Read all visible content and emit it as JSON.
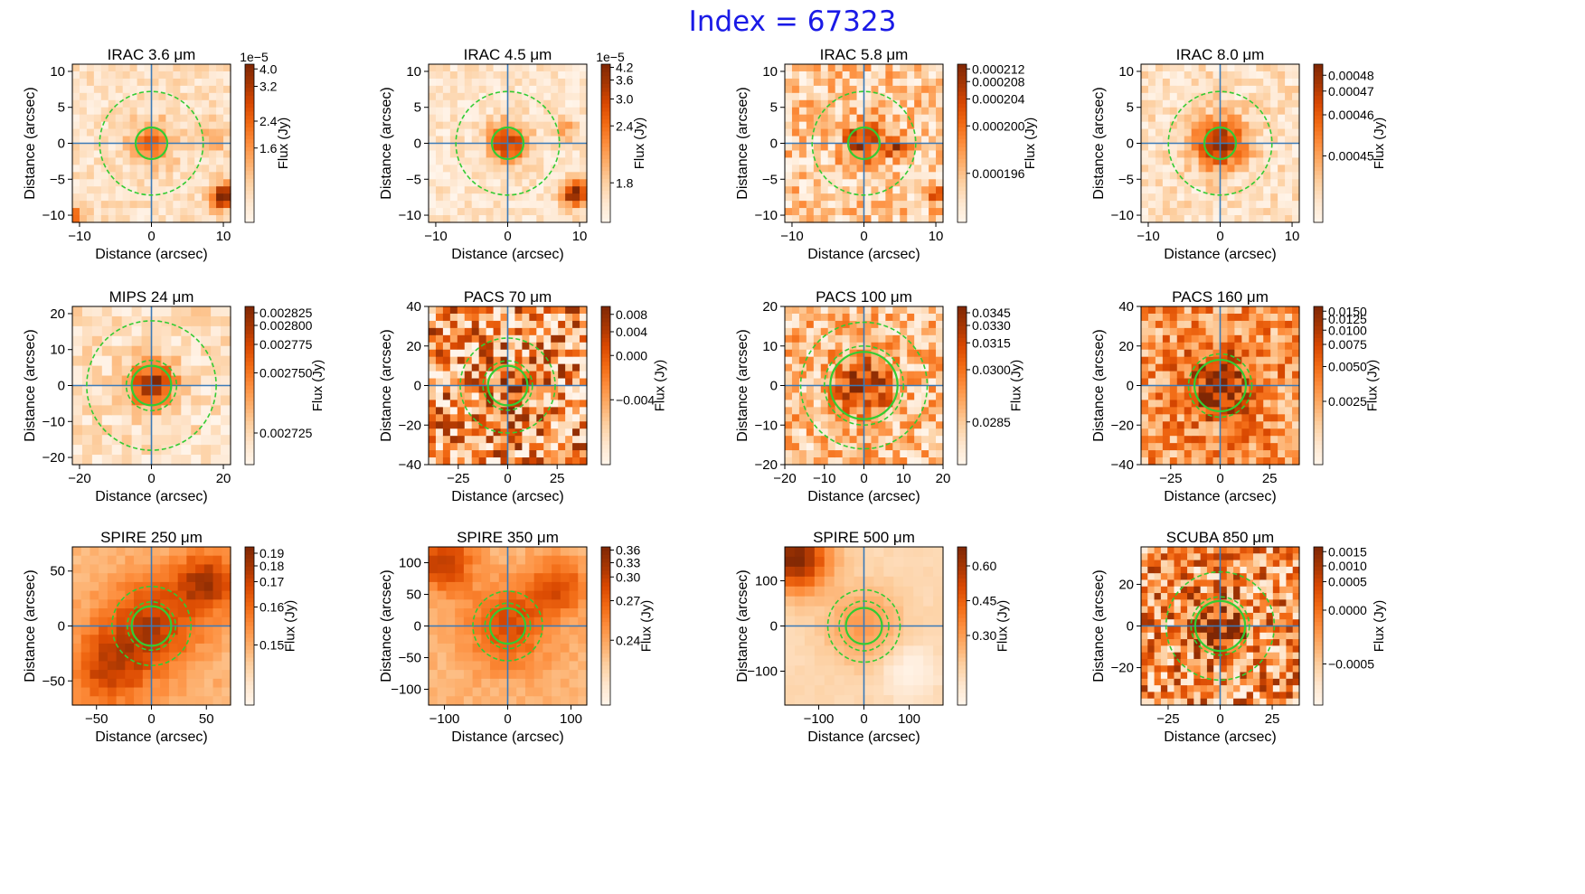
{
  "figure": {
    "title": "Index = 67323",
    "colors": {
      "title": "#1a1ae6",
      "crosshair": "#3a7ab8",
      "aperture": "#33cc33",
      "colormap": "Oranges"
    }
  },
  "chart_data": [
    {
      "type": "heatmap",
      "title": "IRAC 3.6 μm",
      "xlabel": "Distance (arcsec)",
      "ylabel": "Distance (arcsec)",
      "xlim": [
        -11,
        11
      ],
      "ylim": [
        -11,
        11
      ],
      "xticks": [
        -10,
        0,
        10
      ],
      "yticks": [
        -10,
        -5,
        0,
        5,
        10
      ],
      "colorbar": {
        "label": "Flux (Jy)",
        "offset": "1e−5",
        "ticks": [
          "4.0",
          "3.2",
          "2.4",
          "1.6"
        ],
        "tick_positions": [
          0.97,
          0.86,
          0.64,
          0.47
        ]
      },
      "apertures": {
        "inner": 2.2,
        "outer": [
          7.2
        ]
      },
      "peak": {
        "x": 0,
        "y": 0,
        "sigma": 2.0,
        "amp": 0.55
      },
      "extra_sources": [
        {
          "x": 10,
          "y": -7.5,
          "sigma": 1.2,
          "amp": 0.9
        },
        {
          "x": -10.5,
          "y": -10,
          "sigma": 0.8,
          "amp": 0.6
        },
        {
          "x": 9,
          "y": 1,
          "sigma": 1.2,
          "amp": 0.3
        }
      ],
      "noise": 0.25,
      "base": 0.15,
      "grid": 22
    },
    {
      "type": "heatmap",
      "title": "IRAC 4.5 μm",
      "xlabel": "Distance (arcsec)",
      "ylabel": "Distance (arcsec)",
      "xlim": [
        -11,
        11
      ],
      "ylim": [
        -11,
        11
      ],
      "xticks": [
        -10,
        0,
        10
      ],
      "yticks": [
        -10,
        -5,
        0,
        5,
        10
      ],
      "colorbar": {
        "label": "Flux (Jy)",
        "offset": "1e−5",
        "ticks": [
          "4.2",
          "3.6",
          "3.0",
          "2.4",
          "1.8"
        ],
        "tick_positions": [
          0.98,
          0.9,
          0.78,
          0.61,
          0.25
        ]
      },
      "apertures": {
        "inner": 2.2,
        "outer": [
          7.2
        ]
      },
      "peak": {
        "x": 0,
        "y": 0,
        "sigma": 2.0,
        "amp": 0.7
      },
      "extra_sources": [
        {
          "x": 9.5,
          "y": -7,
          "sigma": 1.3,
          "amp": 0.95
        },
        {
          "x": 8,
          "y": 2,
          "sigma": 1.2,
          "amp": 0.3
        }
      ],
      "noise": 0.25,
      "base": 0.12,
      "grid": 22
    },
    {
      "type": "heatmap",
      "title": "IRAC 5.8 μm",
      "xlabel": "Distance (arcsec)",
      "ylabel": "Distance (arcsec)",
      "xlim": [
        -11,
        11
      ],
      "ylim": [
        -11,
        11
      ],
      "xticks": [
        -10,
        0,
        10
      ],
      "yticks": [
        -10,
        -5,
        0,
        5,
        10
      ],
      "colorbar": {
        "label": "Flux (Jy)",
        "ticks": [
          "0.000212",
          "0.000208",
          "0.000204",
          "0.000200",
          "0.000196"
        ],
        "tick_positions": [
          0.97,
          0.89,
          0.78,
          0.61,
          0.31
        ]
      },
      "apertures": {
        "inner": 2.2,
        "outer": [
          7.2
        ]
      },
      "peak": {
        "x": 0,
        "y": 0,
        "sigma": 2.0,
        "amp": 0.6
      },
      "extra_sources": [
        {
          "x": 4.5,
          "y": -0.5,
          "sigma": 1.0,
          "amp": 0.6
        },
        {
          "x": 10,
          "y": -7,
          "sigma": 1.0,
          "amp": 0.6
        }
      ],
      "noise": 0.55,
      "base": 0.25,
      "grid": 22
    },
    {
      "type": "heatmap",
      "title": "IRAC 8.0 μm",
      "xlabel": "Distance (arcsec)",
      "ylabel": "Distance (arcsec)",
      "xlim": [
        -11,
        11
      ],
      "ylim": [
        -11,
        11
      ],
      "xticks": [
        -10,
        0,
        10
      ],
      "yticks": [
        -10,
        -5,
        0,
        5,
        10
      ],
      "colorbar": {
        "label": "Flux (Jy)",
        "ticks": [
          "0.00048",
          "0.00047",
          "0.00046",
          "0.00045"
        ],
        "tick_positions": [
          0.93,
          0.83,
          0.68,
          0.42
        ]
      },
      "apertures": {
        "inner": 2.2,
        "outer": [
          7.2
        ]
      },
      "peak": {
        "x": 0,
        "y": 0,
        "sigma": 2.5,
        "amp": 0.8
      },
      "extra_sources": [],
      "noise": 0.3,
      "base": 0.15,
      "grid": 22
    },
    {
      "type": "heatmap",
      "title": "MIPS 24 μm",
      "xlabel": "Distance (arcsec)",
      "ylabel": "Distance (arcsec)",
      "xlim": [
        -22,
        22
      ],
      "ylim": [
        -22,
        22
      ],
      "xticks": [
        -20,
        0,
        20
      ],
      "yticks": [
        -20,
        -10,
        0,
        10,
        20
      ],
      "colorbar": {
        "label": "Flux (Jy)",
        "ticks": [
          "0.002825",
          "0.002800",
          "0.002775",
          "0.002750",
          "0.002725"
        ],
        "tick_positions": [
          0.96,
          0.88,
          0.76,
          0.58,
          0.2
        ]
      },
      "apertures": {
        "inner": 5.5,
        "outer": [
          7.0,
          18.0
        ]
      },
      "peak": {
        "x": 0,
        "y": 0,
        "sigma": 4.5,
        "amp": 0.85
      },
      "extra_sources": [],
      "noise": 0.3,
      "base": 0.15,
      "grid": 16
    },
    {
      "type": "heatmap",
      "title": "PACS 70 μm",
      "xlabel": "Distance (arcsec)",
      "ylabel": "Distance (arcsec)",
      "xlim": [
        -40,
        40
      ],
      "ylim": [
        -40,
        40
      ],
      "xticks": [
        -25,
        0,
        25
      ],
      "yticks": [
        -40,
        -20,
        0,
        20,
        40
      ],
      "colorbar": {
        "label": "Flux (Jy)",
        "ticks": [
          "0.008",
          "0.004",
          "0.000",
          "−0.004"
        ],
        "tick_positions": [
          0.95,
          0.84,
          0.69,
          0.41
        ]
      },
      "apertures": {
        "inner": 10,
        "outer": [
          12.5,
          24
        ]
      },
      "peak": {
        "x": 0,
        "y": 0,
        "sigma": 7,
        "amp": 0.3
      },
      "extra_sources": [],
      "noise": 1.0,
      "base": 0.45,
      "grid": 22
    },
    {
      "type": "heatmap",
      "title": "PACS 100 μm",
      "xlabel": "Distance (arcsec)",
      "ylabel": "Distance (arcsec)",
      "xlim": [
        -20,
        20
      ],
      "ylim": [
        -20,
        20
      ],
      "xticks": [
        -20,
        -10,
        0,
        10,
        20
      ],
      "yticks": [
        -20,
        -10,
        0,
        10,
        20
      ],
      "colorbar": {
        "label": "Flux (Jy)",
        "ticks": [
          "0.0345",
          "0.0330",
          "0.0315",
          "0.0300",
          "0.0285"
        ],
        "tick_positions": [
          0.96,
          0.88,
          0.77,
          0.6,
          0.27
        ]
      },
      "apertures": {
        "inner": 8.5,
        "outer": [
          10,
          16
        ]
      },
      "peak": {
        "x": 0,
        "y": 0,
        "sigma": 5,
        "amp": 0.55
      },
      "extra_sources": [],
      "noise": 0.6,
      "base": 0.3,
      "grid": 22
    },
    {
      "type": "heatmap",
      "title": "PACS 160 μm",
      "xlabel": "Distance (arcsec)",
      "ylabel": "Distance (arcsec)",
      "xlim": [
        -40,
        40
      ],
      "ylim": [
        -40,
        40
      ],
      "xticks": [
        -25,
        0,
        25
      ],
      "yticks": [
        -40,
        -20,
        0,
        20,
        40
      ],
      "colorbar": {
        "label": "Flux (Jy)",
        "ticks": [
          "0.0150",
          "0.0125",
          "0.0100",
          "0.0075",
          "0.0050",
          "0.0025"
        ],
        "tick_positions": [
          0.97,
          0.92,
          0.85,
          0.76,
          0.62,
          0.4
        ]
      },
      "apertures": {
        "inner": 13,
        "outer": [
          16
        ]
      },
      "peak": {
        "x": 0,
        "y": 0,
        "sigma": 12,
        "amp": 0.5
      },
      "extra_sources": [],
      "noise": 0.6,
      "base": 0.45,
      "grid": 22
    },
    {
      "type": "heatmap",
      "title": "SPIRE 250 μm",
      "xlabel": "Distance (arcsec)",
      "ylabel": "Distance (arcsec)",
      "xlim": [
        -72,
        72
      ],
      "ylim": [
        -72,
        72
      ],
      "xticks": [
        -50,
        0,
        50
      ],
      "yticks": [
        -50,
        0,
        50
      ],
      "colorbar": {
        "label": "Flux (Jy)",
        "ticks": [
          "0.19",
          "0.18",
          "0.17",
          "0.16",
          "0.15"
        ],
        "tick_positions": [
          0.96,
          0.88,
          0.78,
          0.62,
          0.38
        ]
      },
      "apertures": {
        "inner": 18,
        "outer": [
          22,
          36
        ]
      },
      "peak": {
        "x": 0,
        "y": 0,
        "sigma": 30,
        "amp": 0.45
      },
      "extra_sources": [
        {
          "x": 50,
          "y": 40,
          "sigma": 20,
          "amp": 0.5
        },
        {
          "x": -40,
          "y": -40,
          "sigma": 25,
          "amp": 0.4
        }
      ],
      "noise": 0.12,
      "base": 0.35,
      "grid": 18
    },
    {
      "type": "heatmap",
      "title": "SPIRE 350 μm",
      "xlabel": "Distance (arcsec)",
      "ylabel": "Distance (arcsec)",
      "xlim": [
        -125,
        125
      ],
      "ylim": [
        -125,
        125
      ],
      "xticks": [
        -100,
        0,
        100
      ],
      "yticks": [
        -100,
        -50,
        0,
        50,
        100
      ],
      "colorbar": {
        "label": "Flux (Jy)",
        "ticks": [
          "0.36",
          "0.33",
          "0.30",
          "0.27",
          "0.24"
        ],
        "tick_positions": [
          0.98,
          0.9,
          0.81,
          0.66,
          0.41
        ]
      },
      "apertures": {
        "inner": 28,
        "outer": [
          36,
          55
        ]
      },
      "peak": {
        "x": 0,
        "y": 0,
        "sigma": 45,
        "amp": 0.4
      },
      "extra_sources": [
        {
          "x": -100,
          "y": 100,
          "sigma": 30,
          "amp": 0.5
        },
        {
          "x": 80,
          "y": 60,
          "sigma": 30,
          "amp": 0.4
        }
      ],
      "noise": 0.12,
      "base": 0.35,
      "grid": 18
    },
    {
      "type": "heatmap",
      "title": "SPIRE 500 μm",
      "xlabel": "Distance (arcsec)",
      "ylabel": "Distance (arcsec)",
      "xlim": [
        -175,
        175
      ],
      "ylim": [
        -175,
        175
      ],
      "xticks": [
        -100,
        0,
        100
      ],
      "yticks": [
        -100,
        0,
        100
      ],
      "colorbar": {
        "label": "Flux (Jy)",
        "ticks": [
          "0.60",
          "0.45",
          "0.30"
        ],
        "tick_positions": [
          0.88,
          0.66,
          0.44
        ]
      },
      "apertures": {
        "inner": 40,
        "outer": [
          55,
          80
        ]
      },
      "peak": {
        "x": 0,
        "y": 0,
        "sigma": 60,
        "amp": 0.25
      },
      "extra_sources": [
        {
          "x": -150,
          "y": 150,
          "sigma": 50,
          "amp": 0.8
        },
        {
          "x": 100,
          "y": -100,
          "sigma": 40,
          "amp": -0.2
        }
      ],
      "noise": 0.05,
      "base": 0.2,
      "grid": 16
    },
    {
      "type": "heatmap",
      "title": "SCUBA 850 μm",
      "xlabel": "Distance (arcsec)",
      "ylabel": "Distance (arcsec)",
      "xlim": [
        -38,
        38
      ],
      "ylim": [
        -38,
        38
      ],
      "xticks": [
        -25,
        0,
        25
      ],
      "yticks": [
        -20,
        0,
        20
      ],
      "colorbar": {
        "label": "Flux (Jy)",
        "ticks": [
          "0.0015",
          "0.0010",
          "0.0005",
          "0.0000",
          "−0.0005"
        ],
        "tick_positions": [
          0.97,
          0.88,
          0.78,
          0.6,
          0.26
        ]
      },
      "apertures": {
        "inner": 12,
        "outer": [
          14,
          26
        ]
      },
      "peak": {
        "x": 0,
        "y": 0,
        "sigma": 10,
        "amp": 0.35
      },
      "extra_sources": [],
      "noise": 0.9,
      "base": 0.45,
      "grid": 24
    }
  ]
}
